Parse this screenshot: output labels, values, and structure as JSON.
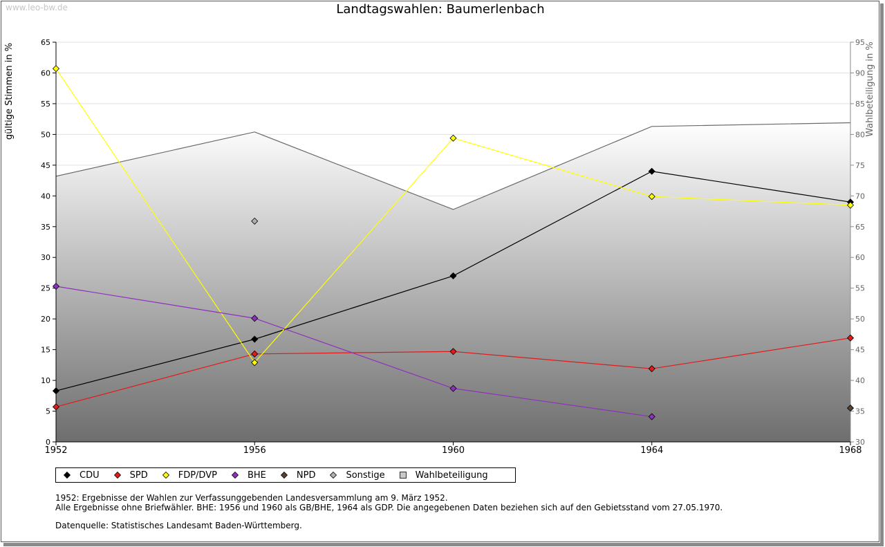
{
  "watermark": "www.leo-bw.de",
  "chart_data": {
    "type": "line",
    "title": "Landtagswahlen: Baumerlenbach",
    "ylabel": "gültige Stimmen in %",
    "y2label": "Wahlbeteiligung in %",
    "x": [
      "1952",
      "1956",
      "1960",
      "1964",
      "1968"
    ],
    "ylim": [
      0,
      65
    ],
    "y2lim": [
      30,
      95
    ],
    "yticks": [
      0,
      5,
      10,
      15,
      20,
      25,
      30,
      35,
      40,
      45,
      50,
      55,
      60,
      65
    ],
    "y2ticks": [
      30,
      35,
      40,
      45,
      50,
      55,
      60,
      65,
      70,
      75,
      80,
      85,
      90,
      95
    ],
    "grid": true,
    "legend_position": "bottom",
    "series": [
      {
        "name": "CDU",
        "color": "#000000",
        "values": [
          8.3,
          16.7,
          27.0,
          44.0,
          39.0
        ]
      },
      {
        "name": "SPD",
        "color": "#e21a1a",
        "values": [
          5.7,
          14.3,
          14.7,
          11.9,
          16.9
        ]
      },
      {
        "name": "FDP/DVP",
        "color": "#ffff00",
        "values": [
          60.7,
          12.9,
          49.4,
          39.9,
          38.5
        ]
      },
      {
        "name": "BHE",
        "color": "#8e2fc0",
        "values": [
          25.3,
          20.1,
          8.7,
          4.1,
          null
        ]
      },
      {
        "name": "NPD",
        "color": "#5a4030",
        "values": [
          null,
          null,
          null,
          null,
          5.5
        ]
      },
      {
        "name": "Sonstige",
        "color": "#b0b0b0",
        "values": [
          null,
          35.9,
          null,
          null,
          null
        ]
      }
    ],
    "turnout": {
      "name": "Wahlbeteiligung",
      "axis": "right",
      "values": [
        73.2,
        80.4,
        67.8,
        81.3,
        81.9
      ]
    }
  },
  "legend_labels": [
    "CDU",
    "SPD",
    "FDP/DVP",
    "BHE",
    "NPD",
    "Sonstige",
    "Wahlbeteiligung"
  ],
  "notes": {
    "line1": "1952: Ergebnisse der Wahlen zur Verfassunggebenden Landesversammlung am 9. März 1952.",
    "line2": "Alle Ergebnisse ohne Briefwähler. BHE: 1956 und 1960 als GB/BHE, 1964 als GDP. Die angegebenen Daten beziehen sich auf den Gebietsstand vom 27.05.1970.",
    "line3": "Datenquelle: Statistisches Landesamt Baden-Württemberg."
  }
}
